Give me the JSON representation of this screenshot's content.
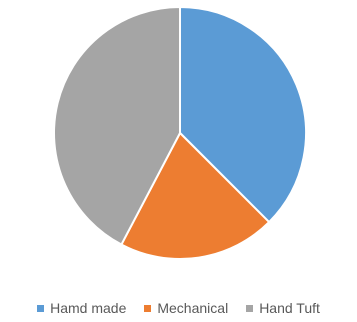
{
  "chart_data": {
    "type": "pie",
    "categories": [
      "Hamd made",
      "Mechanical",
      "Hand Tuft"
    ],
    "values": [
      37.5,
      20.2,
      42.3
    ],
    "colors": [
      "#5B9BD5",
      "#ED7D31",
      "#A5A5A5"
    ],
    "legend_position": "bottom",
    "start": "12 o'clock, clockwise"
  }
}
